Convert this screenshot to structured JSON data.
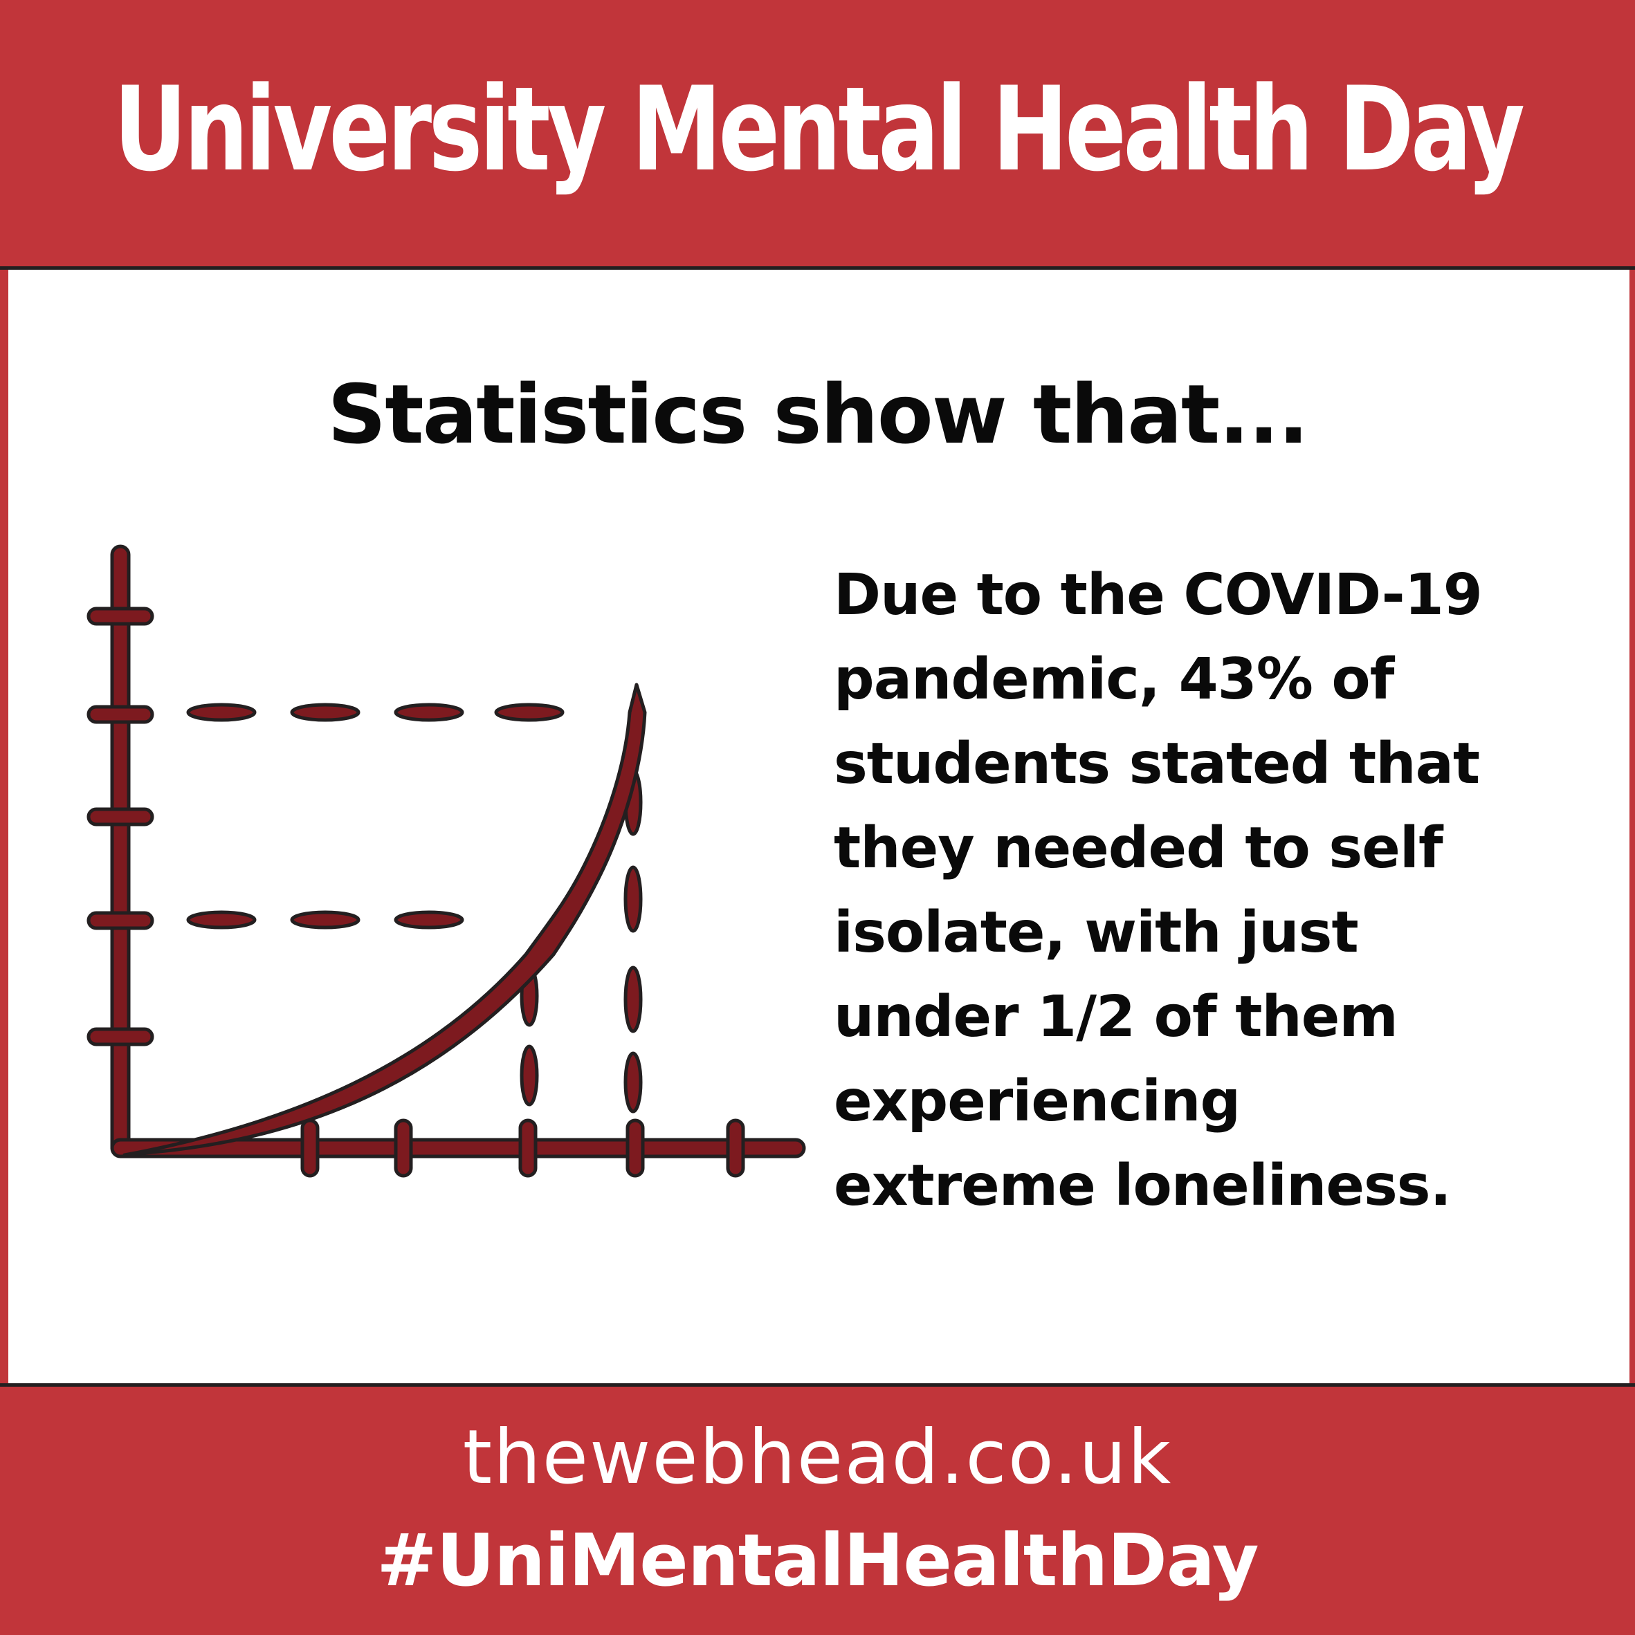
{
  "header": {
    "title": "University Mental Health Day"
  },
  "main": {
    "subheading": "Statistics show that...",
    "statement": "Due to the COVID-19\npandemic, 43% of\nstudents stated that\nthey needed to self\nisolate, with just\nunder 1/2 of them\nexperiencing\nextreme loneliness."
  },
  "illustration": {
    "icon": "rising-line-graph-icon"
  },
  "footer": {
    "url": "thewebhead.co.uk",
    "hashtag": "#UniMentalHealthDay"
  },
  "colors": {
    "banner": "#c1353a",
    "graph_fill": "#7d1a1f",
    "outline": "#231f20",
    "text_dark": "#0a0a0a",
    "text_light": "#ffffff"
  }
}
